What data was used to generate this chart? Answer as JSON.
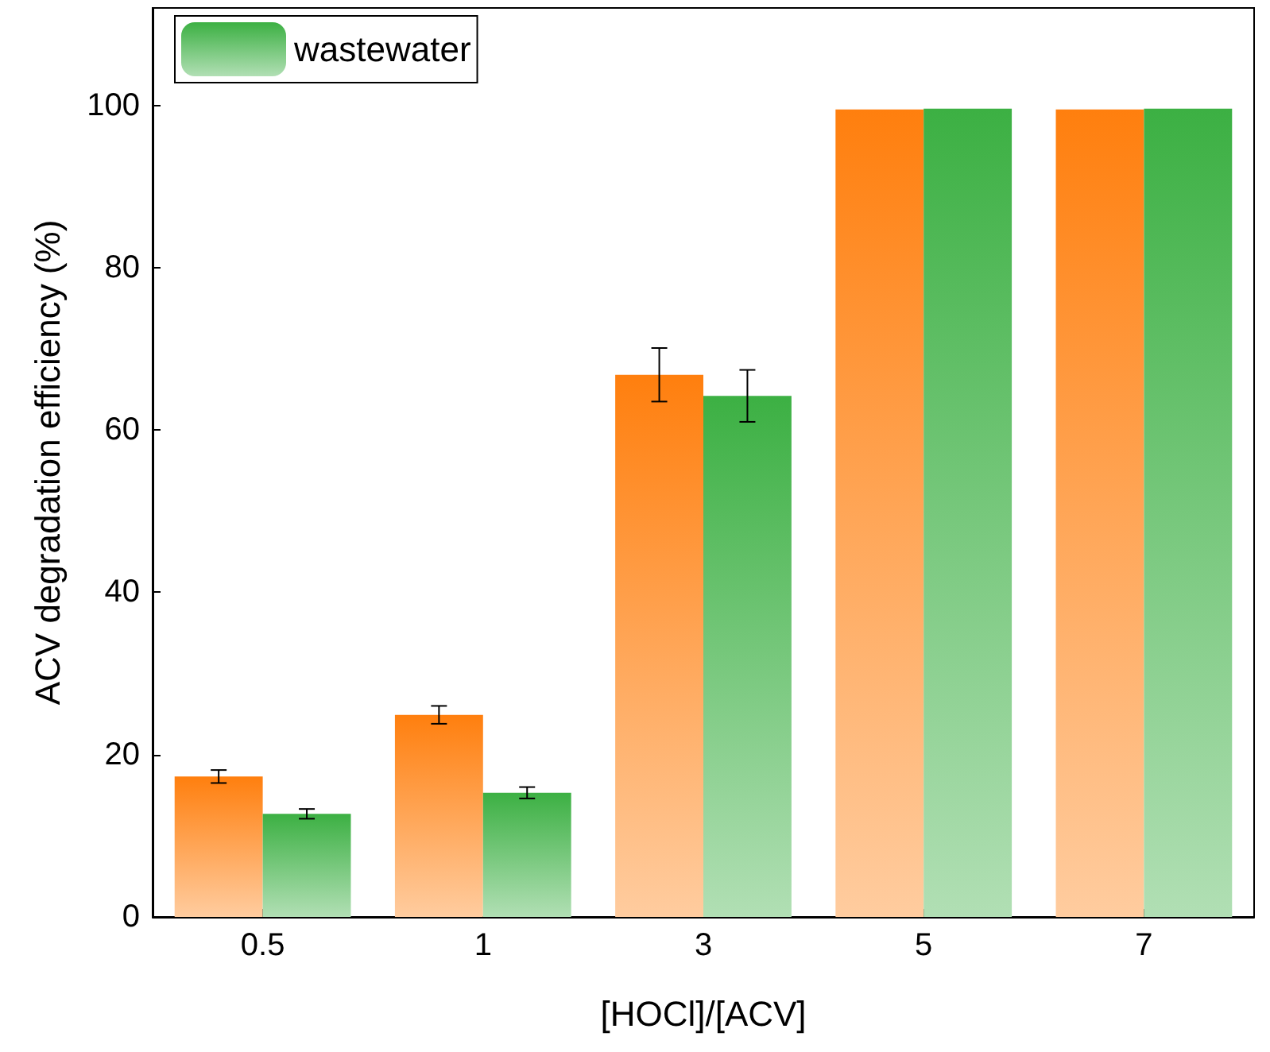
{
  "chart_data": {
    "type": "bar",
    "xlabel": "[HOCl]/[ACV]",
    "ylabel": "ACV degradation efficiency (%)",
    "categories": [
      "0.5",
      "1",
      "3",
      "5",
      "7"
    ],
    "series": [
      {
        "color": "#ff7f0e",
        "values": [
          17.3,
          24.9,
          66.8,
          99.5,
          99.5
        ],
        "errors": [
          0.8,
          1.1,
          3.3,
          null,
          null
        ]
      },
      {
        "name": "wastewater",
        "color": "#3cb043",
        "values": [
          12.7,
          15.3,
          64.2,
          99.6,
          99.6
        ],
        "errors": [
          0.6,
          0.7,
          3.2,
          null,
          null
        ]
      }
    ],
    "ylim": [
      0,
      112
    ],
    "yticks": [
      0,
      20,
      40,
      60,
      80,
      100
    ],
    "grid": false,
    "legend": "top left"
  }
}
